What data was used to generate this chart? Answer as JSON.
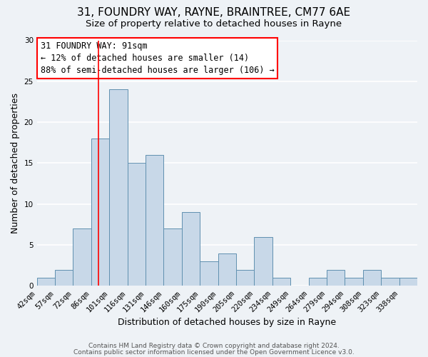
{
  "title1": "31, FOUNDRY WAY, RAYNE, BRAINTREE, CM77 6AE",
  "title2": "Size of property relative to detached houses in Rayne",
  "xlabel": "Distribution of detached houses by size in Rayne",
  "ylabel": "Number of detached properties",
  "footer1": "Contains HM Land Registry data © Crown copyright and database right 2024.",
  "footer2": "Contains public sector information licensed under the Open Government Licence v3.0.",
  "bin_labels": [
    "42sqm",
    "57sqm",
    "72sqm",
    "86sqm",
    "101sqm",
    "116sqm",
    "131sqm",
    "146sqm",
    "160sqm",
    "175sqm",
    "190sqm",
    "205sqm",
    "220sqm",
    "234sqm",
    "249sqm",
    "264sqm",
    "279sqm",
    "294sqm",
    "308sqm",
    "323sqm",
    "338sqm"
  ],
  "bar_values": [
    1,
    2,
    7,
    18,
    24,
    15,
    16,
    7,
    9,
    3,
    4,
    2,
    6,
    1,
    0,
    1,
    2,
    1,
    2,
    1,
    1
  ],
  "n_bins": 21,
  "property_value_bin": 3.4,
  "bar_color": "#c8d8e8",
  "bar_edge_color": "#6090b0",
  "annotation_text_line1": "31 FOUNDRY WAY: 91sqm",
  "annotation_text_line2": "← 12% of detached houses are smaller (14)",
  "annotation_text_line3": "88% of semi-detached houses are larger (106) →",
  "ylim": [
    0,
    30
  ],
  "yticks": [
    0,
    5,
    10,
    15,
    20,
    25,
    30
  ],
  "background_color": "#eef2f6",
  "grid_color": "#ffffff",
  "title1_fontsize": 11,
  "title2_fontsize": 9.5,
  "axis_label_fontsize": 9,
  "tick_fontsize": 7.5,
  "annotation_fontsize": 8.5,
  "footer_fontsize": 6.5
}
